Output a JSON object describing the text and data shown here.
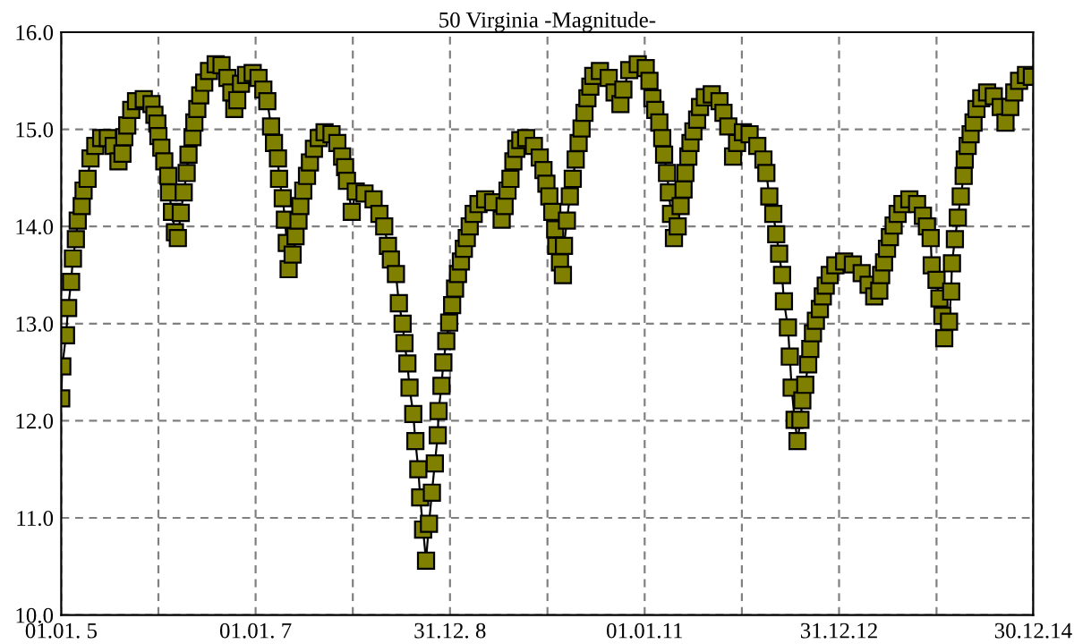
{
  "chart_data": {
    "type": "line",
    "title": "50 Virginia -Magnitude-",
    "marker": "square",
    "line_style": "solid",
    "grid": true,
    "xlim": [
      "2005-01-01",
      "2014-12-30"
    ],
    "ylim": [
      10.0,
      16.0
    ],
    "xticks": [
      {
        "value": "2005-01-01",
        "label": "01.01. 5"
      },
      {
        "value": "2006-01-01",
        "label": null
      },
      {
        "value": "2007-01-01",
        "label": "01.01. 7"
      },
      {
        "value": "2008-01-01",
        "label": null
      },
      {
        "value": "2008-12-31",
        "label": "31.12. 8"
      },
      {
        "value": "2010-01-01",
        "label": null
      },
      {
        "value": "2011-01-01",
        "label": "01.01.11"
      },
      {
        "value": "2012-01-01",
        "label": null
      },
      {
        "value": "2012-12-31",
        "label": "31.12.12"
      },
      {
        "value": "2014-01-01",
        "label": null
      },
      {
        "value": "2014-12-30",
        "label": "30.12.14"
      }
    ],
    "yticks": [
      {
        "value": 10,
        "label": "10.0"
      },
      {
        "value": 11,
        "label": "11.0"
      },
      {
        "value": 12,
        "label": "12.0"
      },
      {
        "value": 13,
        "label": "13.0"
      },
      {
        "value": 14,
        "label": "14.0"
      },
      {
        "value": 15,
        "label": "15.0"
      },
      {
        "value": 16,
        "label": "16.0"
      }
    ],
    "series": [
      {
        "color": "#808000",
        "x": [
          "2005-01-01",
          "2005-01-05",
          "2005-01-19",
          "2005-01-27",
          "2005-02-07",
          "2005-02-14",
          "2005-02-25",
          "2005-03-04",
          "2005-03-19",
          "2005-03-26",
          "2005-04-10",
          "2005-04-21",
          "2005-05-09",
          "2005-05-31",
          "2005-06-25",
          "2005-07-17",
          "2005-08-04",
          "2005-08-19",
          "2005-08-26",
          "2005-09-06",
          "2005-09-21",
          "2005-10-09",
          "2005-11-07",
          "2005-12-06",
          "2005-12-17",
          "2005-12-28",
          "2006-01-01",
          "2006-01-12",
          "2006-01-23",
          "2006-02-07",
          "2006-02-10",
          "2006-02-21",
          "2006-03-04",
          "2006-03-15",
          "2006-03-26",
          "2006-04-06",
          "2006-04-17",
          "2006-04-24",
          "2006-05-09",
          "2006-05-16",
          "2006-05-27",
          "2006-06-07",
          "2006-06-22",
          "2006-07-10",
          "2006-08-04",
          "2006-08-26",
          "2006-09-17",
          "2006-10-02",
          "2006-10-13",
          "2006-10-24",
          "2006-11-07",
          "2006-11-26",
          "2006-12-21",
          "2007-01-12",
          "2007-01-30",
          "2007-02-14",
          "2007-02-28",
          "2007-03-11",
          "2007-03-26",
          "2007-03-30",
          "2007-04-13",
          "2007-04-21",
          "2007-04-28",
          "2007-05-05",
          "2007-05-20",
          "2007-05-31",
          "2007-06-11",
          "2007-06-18",
          "2007-06-29",
          "2007-07-13",
          "2007-07-24",
          "2007-08-08",
          "2007-08-26",
          "2007-09-17",
          "2007-10-13",
          "2007-11-04",
          "2007-11-22",
          "2007-12-03",
          "2007-12-10",
          "2007-12-28",
          "2008-01-12",
          "2008-02-14",
          "2008-03-19",
          "2008-04-10",
          "2008-04-28",
          "2008-05-12",
          "2008-05-23",
          "2008-06-11",
          "2008-06-22",
          "2008-07-06",
          "2008-07-13",
          "2008-07-24",
          "2008-08-01",
          "2008-08-15",
          "2008-08-23",
          "2008-09-03",
          "2008-09-10",
          "2008-09-21",
          "2008-10-02",
          "2008-10-13",
          "2008-10-24",
          "2008-11-04",
          "2008-11-15",
          "2008-11-18",
          "2008-11-29",
          "2008-12-06",
          "2008-12-17",
          "2008-12-28",
          "2009-01-08",
          "2009-01-19",
          "2009-01-30",
          "2009-02-10",
          "2009-02-21",
          "2009-03-04",
          "2009-03-15",
          "2009-03-30",
          "2009-04-17",
          "2009-05-12",
          "2009-06-11",
          "2009-07-13",
          "2009-07-24",
          "2009-08-04",
          "2009-08-15",
          "2009-08-26",
          "2009-09-06",
          "2009-09-21",
          "2009-10-13",
          "2009-11-11",
          "2009-12-03",
          "2009-12-17",
          "2009-12-28",
          "2010-01-08",
          "2010-01-19",
          "2010-01-30",
          "2010-02-03",
          "2010-02-17",
          "2010-02-28",
          "2010-03-04",
          "2010-03-15",
          "2010-03-26",
          "2010-04-06",
          "2010-04-17",
          "2010-04-28",
          "2010-05-09",
          "2010-05-20",
          "2010-05-31",
          "2010-06-11",
          "2010-06-22",
          "2010-07-17",
          "2010-08-19",
          "2010-09-10",
          "2010-10-02",
          "2010-10-13",
          "2010-11-04",
          "2010-12-06",
          "2011-01-05",
          "2011-01-19",
          "2011-01-30",
          "2011-02-10",
          "2011-02-25",
          "2011-03-08",
          "2011-03-15",
          "2011-03-26",
          "2011-04-02",
          "2011-04-10",
          "2011-04-21",
          "2011-05-05",
          "2011-05-16",
          "2011-05-27",
          "2011-06-03",
          "2011-06-14",
          "2011-06-22",
          "2011-07-03",
          "2011-07-17",
          "2011-07-28",
          "2011-08-15",
          "2011-09-10",
          "2011-10-09",
          "2011-10-24",
          "2011-11-11",
          "2011-11-29",
          "2011-12-14",
          "2012-01-05",
          "2012-01-30",
          "2012-02-28",
          "2012-03-22",
          "2012-04-02",
          "2012-04-13",
          "2012-04-28",
          "2012-05-09",
          "2012-05-20",
          "2012-05-31",
          "2012-06-07",
          "2012-06-22",
          "2012-06-29",
          "2012-07-06",
          "2012-07-17",
          "2012-07-28",
          "2012-08-08",
          "2012-08-15",
          "2012-08-26",
          "2012-09-06",
          "2012-09-14",
          "2012-09-24",
          "2012-10-05",
          "2012-10-20",
          "2012-10-31",
          "2012-11-11",
          "2012-11-26",
          "2012-12-17",
          "2013-01-19",
          "2013-02-21",
          "2013-03-26",
          "2013-04-21",
          "2013-05-12",
          "2013-05-31",
          "2013-06-07",
          "2013-06-18",
          "2013-06-29",
          "2013-07-10",
          "2013-07-24",
          "2013-08-08",
          "2013-08-26",
          "2013-09-21",
          "2013-10-20",
          "2013-11-11",
          "2013-11-26",
          "2013-12-10",
          "2013-12-14",
          "2014-01-01",
          "2014-01-12",
          "2014-01-23",
          "2014-01-30",
          "2014-02-17",
          "2014-02-25",
          "2014-02-28",
          "2014-03-11",
          "2014-03-22",
          "2014-04-02",
          "2014-04-13",
          "2014-04-17",
          "2014-04-28",
          "2014-05-09",
          "2014-05-20",
          "2014-05-31",
          "2014-06-18",
          "2014-07-10",
          "2014-08-04",
          "2014-08-30",
          "2014-09-17",
          "2014-10-05",
          "2014-10-20",
          "2014-11-07",
          "2014-12-03",
          "2014-12-25"
        ],
        "values": [
          12.23,
          12.56,
          12.88,
          13.16,
          13.43,
          13.67,
          13.87,
          14.06,
          14.21,
          14.37,
          14.49,
          14.7,
          14.83,
          14.91,
          14.91,
          14.83,
          14.67,
          14.75,
          14.92,
          15.04,
          15.2,
          15.29,
          15.31,
          15.26,
          15.15,
          15.06,
          14.93,
          14.81,
          14.67,
          14.52,
          14.35,
          14.15,
          13.94,
          13.88,
          14.14,
          14.35,
          14.55,
          14.74,
          14.92,
          15.07,
          15.21,
          15.35,
          15.48,
          15.6,
          15.67,
          15.66,
          15.53,
          15.38,
          15.21,
          15.3,
          15.47,
          15.56,
          15.58,
          15.53,
          15.41,
          15.29,
          15.03,
          14.86,
          14.7,
          14.49,
          14.29,
          14.07,
          13.83,
          13.56,
          13.71,
          13.9,
          14.06,
          14.21,
          14.37,
          14.52,
          14.66,
          14.8,
          14.91,
          14.97,
          14.95,
          14.86,
          14.72,
          14.61,
          14.47,
          14.15,
          14.36,
          14.34,
          14.28,
          14.13,
          14.0,
          13.8,
          13.66,
          13.51,
          13.21,
          13.0,
          12.8,
          12.59,
          12.34,
          12.07,
          11.79,
          11.5,
          11.21,
          10.88,
          10.56,
          10.94,
          11.26,
          11.56,
          11.85,
          12.1,
          12.36,
          12.6,
          12.82,
          13.01,
          13.19,
          13.36,
          13.51,
          13.64,
          13.77,
          13.88,
          14.0,
          14.13,
          14.23,
          14.28,
          14.25,
          14.07,
          14.21,
          14.37,
          14.49,
          14.67,
          14.8,
          14.89,
          14.91,
          14.83,
          14.71,
          14.58,
          14.44,
          14.31,
          14.15,
          13.97,
          13.8,
          13.63,
          13.5,
          13.8,
          14.06,
          14.31,
          14.49,
          14.69,
          14.86,
          15.01,
          15.17,
          15.32,
          15.44,
          15.55,
          15.6,
          15.53,
          15.38,
          15.26,
          15.41,
          15.61,
          15.67,
          15.63,
          15.5,
          15.32,
          15.2,
          15.07,
          14.91,
          14.74,
          14.55,
          14.35,
          14.13,
          13.88,
          14.0,
          14.21,
          14.38,
          14.55,
          14.72,
          14.86,
          14.98,
          15.1,
          15.23,
          15.33,
          15.36,
          15.29,
          15.17,
          15.03,
          14.72,
          14.86,
          14.97,
          14.95,
          14.83,
          14.69,
          14.55,
          14.31,
          14.13,
          13.92,
          13.72,
          13.5,
          13.23,
          12.96,
          12.66,
          12.34,
          12.01,
          11.79,
          12.01,
          12.21,
          12.37,
          12.58,
          12.74,
          12.9,
          13.03,
          13.15,
          13.28,
          13.39,
          13.5,
          13.6,
          13.64,
          13.61,
          13.52,
          13.4,
          13.28,
          13.34,
          13.5,
          13.63,
          13.77,
          13.89,
          14.01,
          14.13,
          14.23,
          14.28,
          14.23,
          14.11,
          14.0,
          13.88,
          13.6,
          13.45,
          13.26,
          13.08,
          12.85,
          13.02,
          13.33,
          13.62,
          13.87,
          14.09,
          14.31,
          14.52,
          14.69,
          14.83,
          14.95,
          15.07,
          15.21,
          15.32,
          15.38,
          15.34,
          15.23,
          15.07,
          15.23,
          15.38,
          15.5,
          15.56,
          15.54
        ]
      }
    ]
  }
}
